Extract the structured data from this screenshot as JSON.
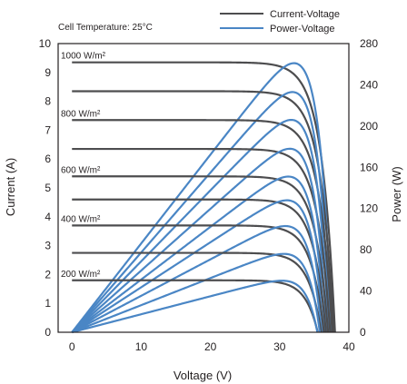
{
  "chart_data": {
    "type": "line",
    "title": "",
    "annotation": "Cell Temperature: 25°C",
    "xlabel": "Voltage (V)",
    "ylabel_left": "Current (A)",
    "ylabel_right": "Power (W)",
    "xlim": [
      -2,
      40
    ],
    "ylim_left": [
      0,
      10
    ],
    "ylim_right": [
      0,
      280
    ],
    "x_ticks": [
      0,
      10,
      20,
      30,
      40
    ],
    "y_ticks_left": [
      0,
      1,
      2,
      3,
      4,
      5,
      6,
      7,
      8,
      9,
      10
    ],
    "y_ticks_right": [
      0,
      40,
      80,
      120,
      160,
      200,
      240,
      280
    ],
    "grid": false,
    "legend_position": "top-right",
    "colors": {
      "current_voltage": "#4d4d4f",
      "power_voltage": "#4a86c5"
    },
    "legend": [
      {
        "label": "Current-Voltage",
        "color": "#4d4d4f"
      },
      {
        "label": "Power-Voltage",
        "color": "#4a86c5"
      }
    ],
    "irradiance_labels": [
      {
        "text": "1000 W/m²",
        "curve_index": 0
      },
      {
        "text": "800 W/m²",
        "curve_index": 2
      },
      {
        "text": "600 W/m²",
        "curve_index": 4
      },
      {
        "text": "400 W/m²",
        "curve_index": 6
      },
      {
        "text": "200 W/m²",
        "curve_index": 8
      }
    ],
    "curves": [
      {
        "isc": 9.35,
        "voc": 38.0,
        "vmp": 32.0,
        "pmax": 261
      },
      {
        "isc": 8.35,
        "voc": 37.8,
        "vmp": 31.8,
        "pmax": 233
      },
      {
        "isc": 7.35,
        "voc": 37.6,
        "vmp": 31.6,
        "pmax": 206
      },
      {
        "isc": 6.35,
        "voc": 37.3,
        "vmp": 31.4,
        "pmax": 178
      },
      {
        "isc": 5.4,
        "voc": 37.0,
        "vmp": 31.2,
        "pmax": 151
      },
      {
        "isc": 4.6,
        "voc": 36.7,
        "vmp": 31.0,
        "pmax": 128
      },
      {
        "isc": 3.7,
        "voc": 36.4,
        "vmp": 30.8,
        "pmax": 103
      },
      {
        "isc": 2.75,
        "voc": 36.0,
        "vmp": 30.6,
        "pmax": 76
      },
      {
        "isc": 1.8,
        "voc": 35.5,
        "vmp": 30.3,
        "pmax": 50
      }
    ]
  }
}
